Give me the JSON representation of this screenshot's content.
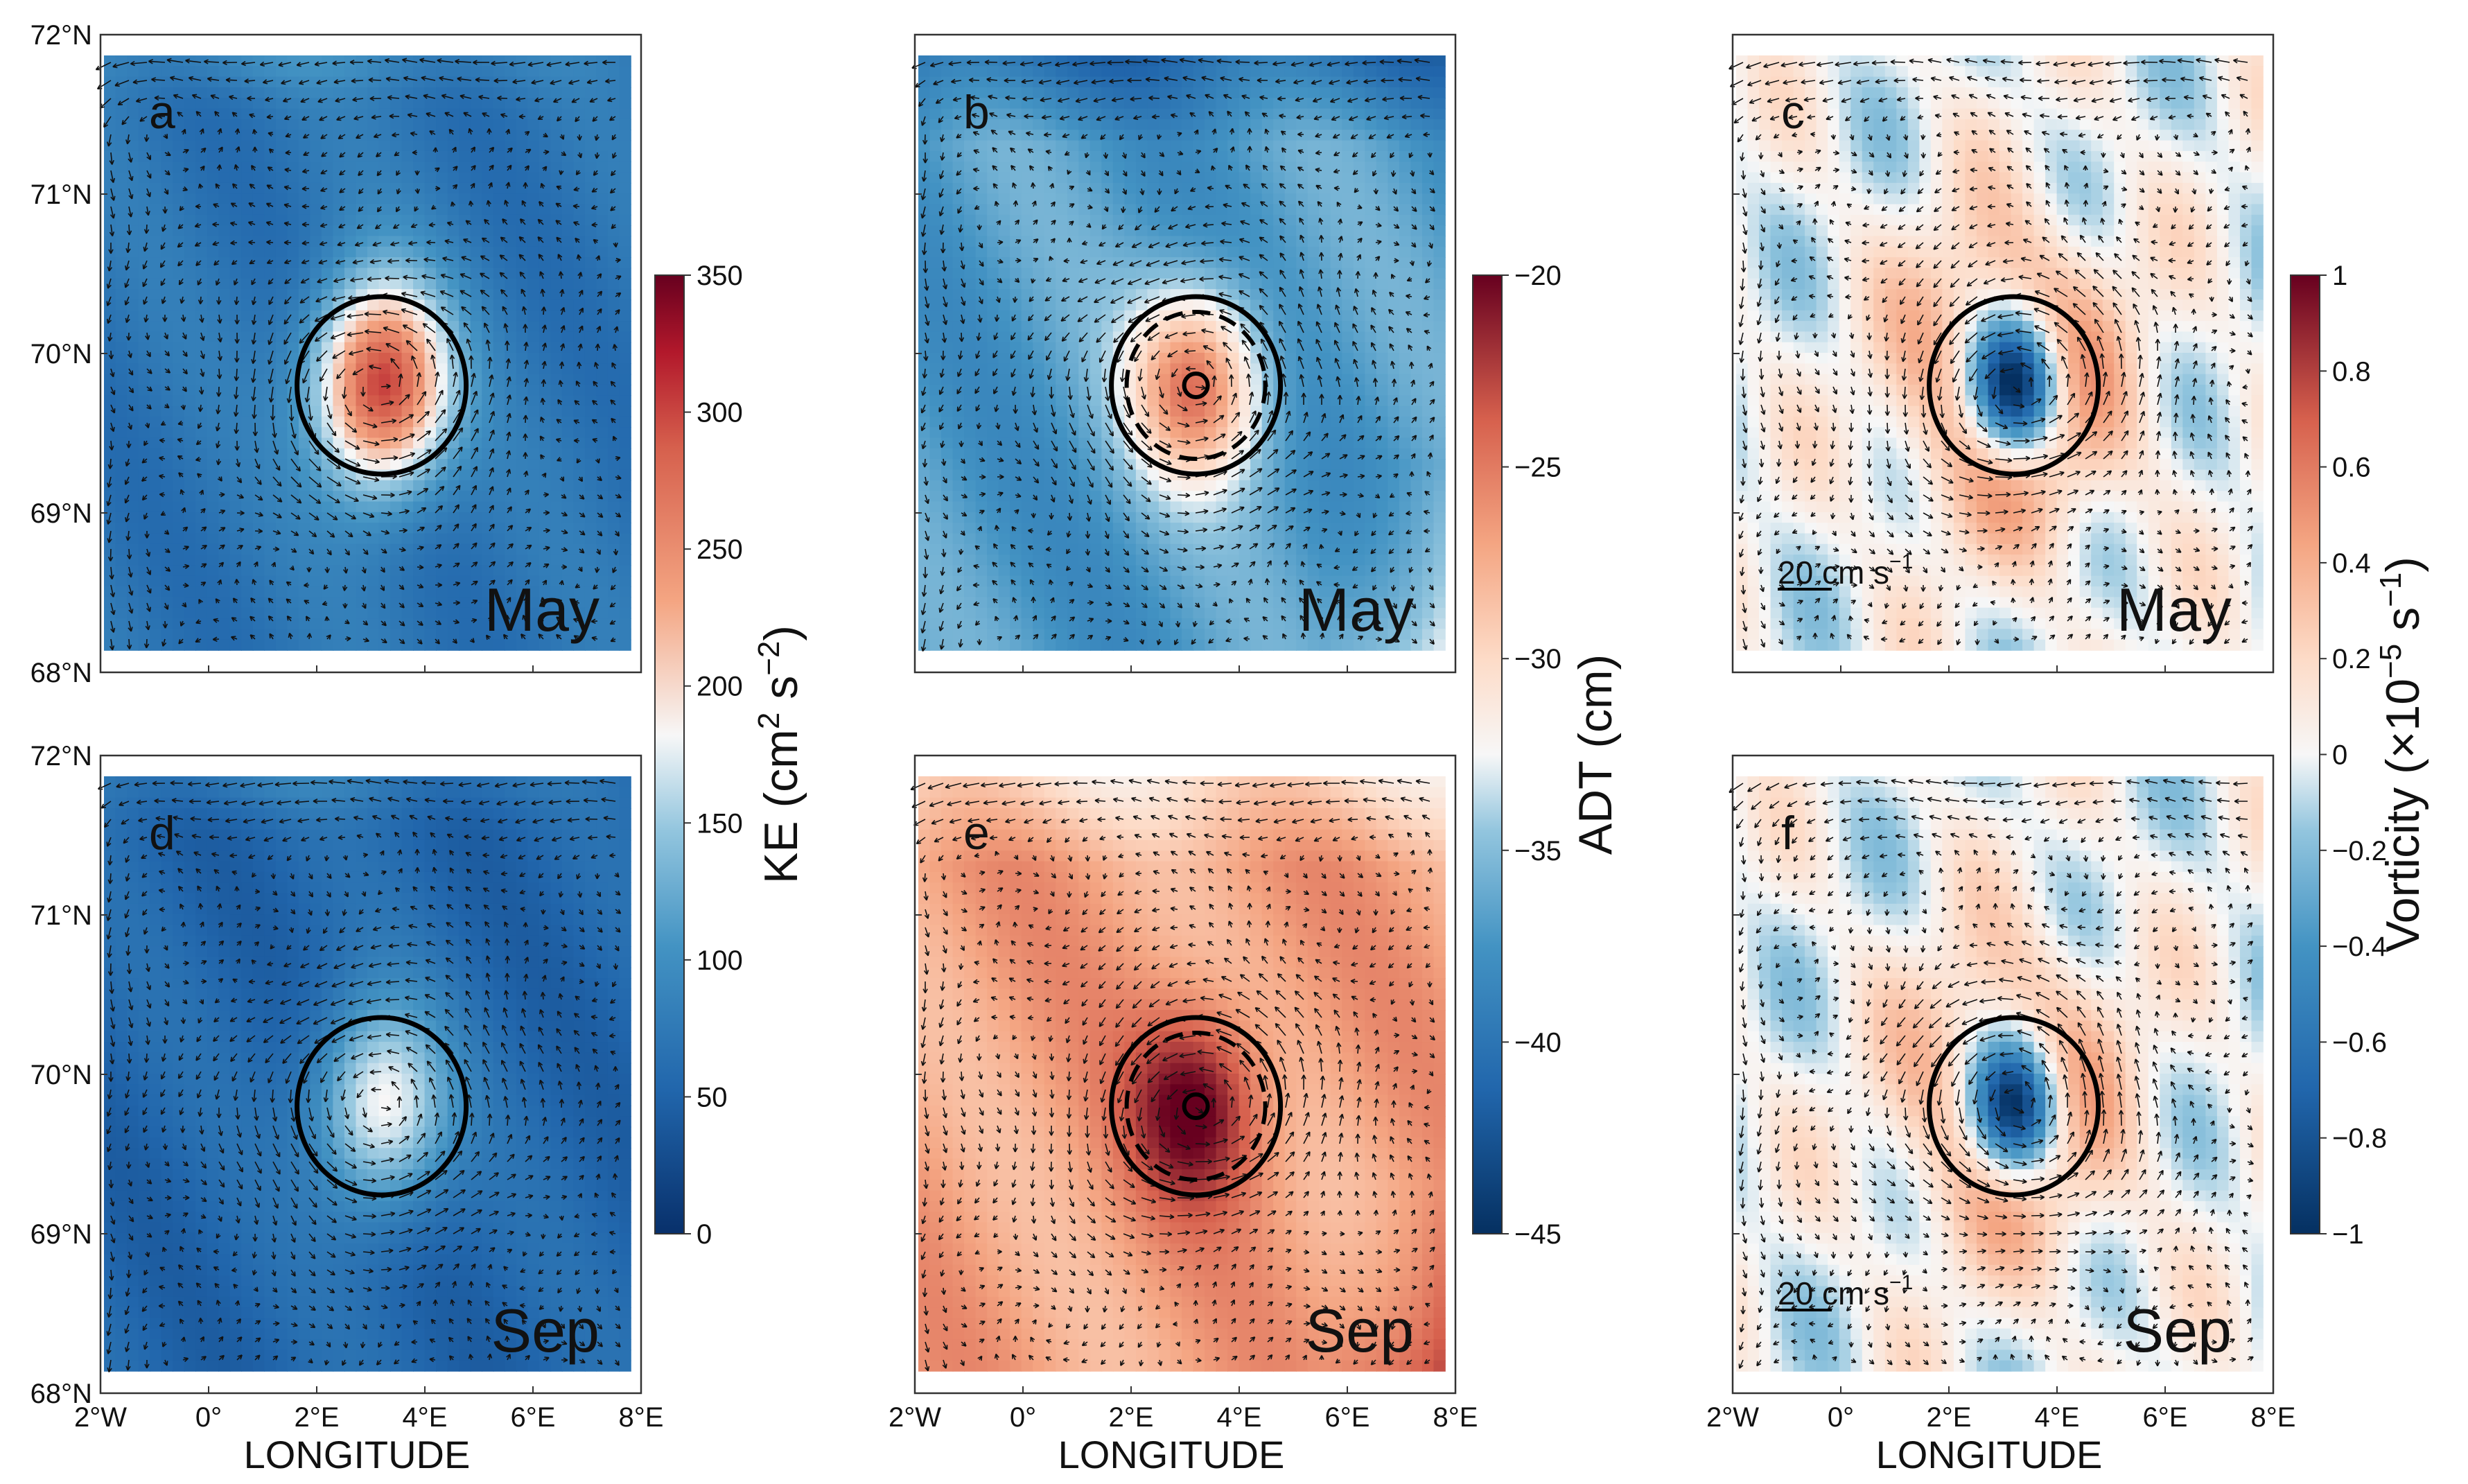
{
  "figure": {
    "panels": [
      {
        "id": "a",
        "label": "a",
        "month": "May",
        "variable": "KE",
        "show_scale": false
      },
      {
        "id": "b",
        "label": "b",
        "month": "May",
        "variable": "ADT",
        "show_scale": false
      },
      {
        "id": "c",
        "label": "c",
        "month": "May",
        "variable": "VOR",
        "show_scale": true
      },
      {
        "id": "d",
        "label": "d",
        "month": "Sep",
        "variable": "KE",
        "show_scale": false
      },
      {
        "id": "e",
        "label": "e",
        "month": "Sep",
        "variable": "ADT",
        "show_scale": false
      },
      {
        "id": "f",
        "label": "f",
        "month": "Sep",
        "variable": "VOR",
        "show_scale": true
      }
    ],
    "x_label": "LONGITUDE",
    "x_ticks": [
      "2°W",
      "0°",
      "2°E",
      "4°E",
      "6°E",
      "8°E"
    ],
    "y_ticks": [
      "72°N",
      "71°N",
      "70°N",
      "69°N",
      "68°N"
    ],
    "scale_arrow_label": "20 cm s",
    "scale_arrow_exp": "−1"
  },
  "colorbars": [
    {
      "id": "ke",
      "label": "KE (cm",
      "label_sup1": "2",
      "label_mid": " s",
      "label_sup2": "−2",
      "label_end": ")",
      "ticks": [
        "350",
        "300",
        "250",
        "200",
        "150",
        "100",
        "50",
        "0"
      ]
    },
    {
      "id": "adt",
      "label": "ADT (cm)",
      "ticks": [
        "−20",
        "−25",
        "−30",
        "−35",
        "−40",
        "−45"
      ]
    },
    {
      "id": "vor",
      "label": "Vorticity",
      "unit": "(×10",
      "unit_sup": "−5",
      "unit_mid": " s",
      "unit_sup2": "−1",
      "unit_end": ")",
      "ticks": [
        "1",
        "0.8",
        "0.6",
        "0.4",
        "0.2",
        "0",
        "−0.2",
        "−0.4",
        "−0.6",
        "−0.8",
        "−1"
      ]
    }
  ],
  "chart_data": [
    {
      "type": "heatmap",
      "panel": "a",
      "variable": "Kinetic energy",
      "units": "cm2 s-2",
      "month": "May",
      "lon_range": [
        -2,
        8
      ],
      "lat_range": [
        68,
        72
      ],
      "color_range": [
        0,
        350
      ],
      "eddy_center": {
        "lon": 3.2,
        "lat": 69.8
      },
      "eddy_ke_max": 310,
      "background_ke": 70
    },
    {
      "type": "heatmap",
      "panel": "b",
      "variable": "ADT",
      "units": "cm",
      "month": "May",
      "lon_range": [
        -2,
        8
      ],
      "lat_range": [
        68,
        72
      ],
      "color_range": [
        -45,
        -20
      ],
      "eddy_center": {
        "lon": 3.2,
        "lat": 69.8
      },
      "eddy_adt_max": -25,
      "background_adt": -37
    },
    {
      "type": "heatmap",
      "panel": "c",
      "variable": "Vorticity",
      "units": "x1e-5 s-1",
      "month": "May",
      "lon_range": [
        -2,
        8
      ],
      "lat_range": [
        68,
        72
      ],
      "color_range": [
        -1,
        1
      ],
      "eddy_center": {
        "lon": 3.2,
        "lat": 69.8
      },
      "eddy_vorticity_min": -0.9,
      "ring_vorticity": 0.4
    },
    {
      "type": "heatmap",
      "panel": "d",
      "variable": "Kinetic energy",
      "units": "cm2 s-2",
      "month": "Sep",
      "lon_range": [
        -2,
        8
      ],
      "lat_range": [
        68,
        72
      ],
      "color_range": [
        0,
        350
      ],
      "eddy_center": {
        "lon": 3.2,
        "lat": 69.8
      },
      "eddy_ke_max": 190,
      "background_ke": 55
    },
    {
      "type": "heatmap",
      "panel": "e",
      "variable": "ADT",
      "units": "cm",
      "month": "Sep",
      "lon_range": [
        -2,
        8
      ],
      "lat_range": [
        68,
        72
      ],
      "color_range": [
        -45,
        -20
      ],
      "eddy_center": {
        "lon": 3.2,
        "lat": 69.8
      },
      "eddy_adt_max": -20,
      "background_adt": -27
    },
    {
      "type": "heatmap",
      "panel": "f",
      "variable": "Vorticity",
      "units": "x1e-5 s-1",
      "month": "Sep",
      "lon_range": [
        -2,
        8
      ],
      "lat_range": [
        68,
        72
      ],
      "color_range": [
        -1,
        1
      ],
      "eddy_center": {
        "lon": 3.2,
        "lat": 69.8
      },
      "eddy_vorticity_min": -0.85,
      "ring_vorticity": 0.35
    }
  ]
}
